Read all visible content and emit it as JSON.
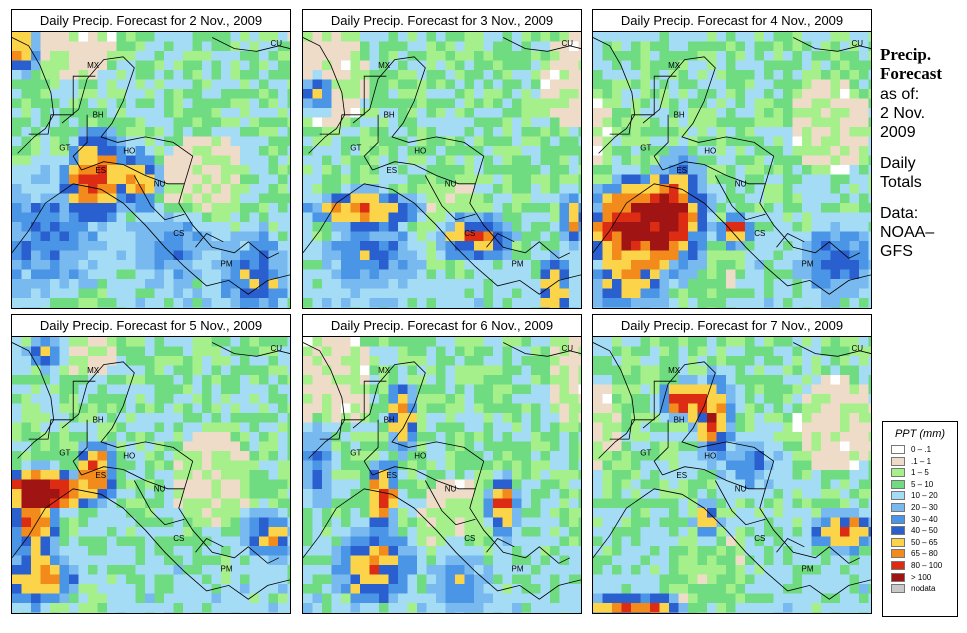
{
  "panels": [
    {
      "title": "Daily Precip. Forecast for  2 Nov., 2009",
      "seed": 11,
      "blobs": [
        [
          0.3,
          0.5,
          0.1,
          0.14,
          78
        ],
        [
          0.45,
          0.52,
          0.06,
          0.1,
          60
        ],
        [
          0.03,
          0.05,
          0.05,
          0.1,
          70
        ],
        [
          0.12,
          0.7,
          0.2,
          0.2,
          30
        ],
        [
          0.85,
          0.85,
          0.1,
          0.15,
          40
        ],
        [
          0.55,
          0.75,
          0.15,
          0.12,
          25
        ]
      ]
    },
    {
      "title": "Daily Precip. Forecast for  3 Nov., 2009",
      "seed": 23,
      "blobs": [
        [
          0.22,
          0.62,
          0.18,
          0.06,
          70
        ],
        [
          0.6,
          0.72,
          0.12,
          0.08,
          70
        ],
        [
          0.95,
          0.65,
          0.04,
          0.08,
          60
        ],
        [
          0.88,
          0.9,
          0.05,
          0.1,
          70
        ],
        [
          0.05,
          0.22,
          0.05,
          0.06,
          60
        ],
        [
          0.25,
          0.78,
          0.15,
          0.1,
          35
        ]
      ]
    },
    {
      "title": "Daily Precip. Forecast for  4 Nov., 2009",
      "seed": 37,
      "blobs": [
        [
          0.15,
          0.68,
          0.15,
          0.15,
          100
        ],
        [
          0.3,
          0.65,
          0.1,
          0.2,
          70
        ],
        [
          0.5,
          0.7,
          0.05,
          0.05,
          80
        ],
        [
          0.12,
          0.88,
          0.12,
          0.08,
          45
        ],
        [
          0.85,
          0.8,
          0.12,
          0.12,
          35
        ]
      ]
    },
    {
      "title": "Daily Precip. Forecast for  5 Nov., 2009",
      "seed": 41,
      "blobs": [
        [
          0.15,
          0.54,
          0.18,
          0.06,
          90
        ],
        [
          0.08,
          0.62,
          0.08,
          0.15,
          75
        ],
        [
          0.3,
          0.45,
          0.06,
          0.08,
          70
        ],
        [
          0.1,
          0.85,
          0.12,
          0.08,
          60
        ],
        [
          0.9,
          0.7,
          0.08,
          0.08,
          50
        ],
        [
          0.12,
          0.05,
          0.06,
          0.06,
          55
        ]
      ]
    },
    {
      "title": "Daily Precip. Forecast for  6 Nov., 2009",
      "seed": 53,
      "blobs": [
        [
          0.28,
          0.55,
          0.05,
          0.1,
          90
        ],
        [
          0.35,
          0.28,
          0.05,
          0.12,
          65
        ],
        [
          0.7,
          0.6,
          0.05,
          0.1,
          75
        ],
        [
          0.25,
          0.8,
          0.12,
          0.12,
          60
        ],
        [
          0.55,
          0.85,
          0.1,
          0.12,
          30
        ],
        [
          0.05,
          0.45,
          0.05,
          0.15,
          35
        ]
      ]
    },
    {
      "title": "Daily Precip. Forecast for  7 Nov., 2009",
      "seed": 67,
      "blobs": [
        [
          0.32,
          0.22,
          0.07,
          0.06,
          85
        ],
        [
          0.42,
          0.28,
          0.06,
          0.14,
          75
        ],
        [
          0.4,
          0.65,
          0.04,
          0.06,
          65
        ],
        [
          0.88,
          0.68,
          0.1,
          0.06,
          70
        ],
        [
          0.15,
          0.95,
          0.15,
          0.04,
          75
        ],
        [
          0.55,
          0.45,
          0.1,
          0.1,
          30
        ]
      ]
    }
  ],
  "country_labels": [
    {
      "text": "CU",
      "fx": 0.93,
      "fy": 0.05
    },
    {
      "text": "MX",
      "fx": 0.27,
      "fy": 0.13
    },
    {
      "text": "BH",
      "fx": 0.29,
      "fy": 0.31
    },
    {
      "text": "GT",
      "fx": 0.17,
      "fy": 0.43
    },
    {
      "text": "HO",
      "fx": 0.4,
      "fy": 0.44
    },
    {
      "text": "ES",
      "fx": 0.3,
      "fy": 0.51
    },
    {
      "text": "NU",
      "fx": 0.51,
      "fy": 0.56
    },
    {
      "text": "CS",
      "fx": 0.58,
      "fy": 0.74
    },
    {
      "text": "PM",
      "fx": 0.75,
      "fy": 0.85
    }
  ],
  "sidebar": {
    "title_line1": "Precip.",
    "title_line2": "Forecast",
    "asof_line1": "as of:",
    "asof_line2": "2 Nov.",
    "asof_line3": "2009",
    "daily_line1": "Daily",
    "daily_line2": "Totals",
    "data_line1": "Data:",
    "data_line2": "NOAA–",
    "data_line3": "GFS"
  },
  "legend": {
    "title": "PPT (mm)",
    "items": [
      {
        "label": "0 – .1",
        "color": "#ffffff"
      },
      {
        "label": ".1 – 1",
        "color": "#eedcc8"
      },
      {
        "label": "1 – 5",
        "color": "#a6f08c"
      },
      {
        "label": "5 – 10",
        "color": "#6fdc82"
      },
      {
        "label": "10 – 20",
        "color": "#a5dcf5"
      },
      {
        "label": "20 – 30",
        "color": "#78b9ef"
      },
      {
        "label": "30 – 40",
        "color": "#4b95e6"
      },
      {
        "label": "40 – 50",
        "color": "#2a5fcf"
      },
      {
        "label": "50 – 65",
        "color": "#fcd44a"
      },
      {
        "label": "65 – 80",
        "color": "#f28a1c"
      },
      {
        "label": "80 – 100",
        "color": "#dc2d14"
      },
      {
        "label": "> 100",
        "color": "#a01414"
      },
      {
        "label": "nodata",
        "color": "#c8c8c8"
      }
    ]
  }
}
